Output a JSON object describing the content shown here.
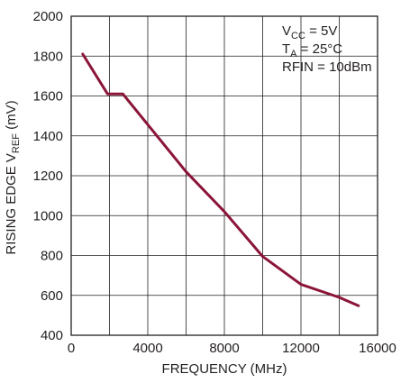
{
  "chart_data": {
    "type": "line",
    "title": "",
    "xlabel": "FREQUENCY (MHz)",
    "ylabel": {
      "prefix": "RISING EDGE V",
      "sub": "REF",
      "suffix": " (mV)"
    },
    "xlim": [
      0,
      16000
    ],
    "ylim": [
      400,
      2000
    ],
    "grid": true,
    "x_ticks": [
      "0",
      "4000",
      "8000",
      "12000",
      "16000"
    ],
    "y_ticks": [
      "400",
      "600",
      "800",
      "1000",
      "1200",
      "1400",
      "1600",
      "1800",
      "2000"
    ],
    "series": [
      {
        "color": "#8b1538",
        "points": [
          {
            "x": 600,
            "y": 1810
          },
          {
            "x": 1900,
            "y": 1610
          },
          {
            "x": 2700,
            "y": 1610
          },
          {
            "x": 6000,
            "y": 1220
          },
          {
            "x": 8000,
            "y": 1020
          },
          {
            "x": 10000,
            "y": 795
          },
          {
            "x": 12000,
            "y": 655
          },
          {
            "x": 14000,
            "y": 590
          },
          {
            "x": 15000,
            "y": 548
          }
        ]
      }
    ],
    "annotations": [
      {
        "main": "V",
        "sub": "CC",
        "rest": " = 5V"
      },
      {
        "main": "T",
        "sub": "A",
        "rest": " = 25°C"
      },
      {
        "main": "RFIN = 10dBm",
        "sub": "",
        "rest": ""
      }
    ]
  }
}
